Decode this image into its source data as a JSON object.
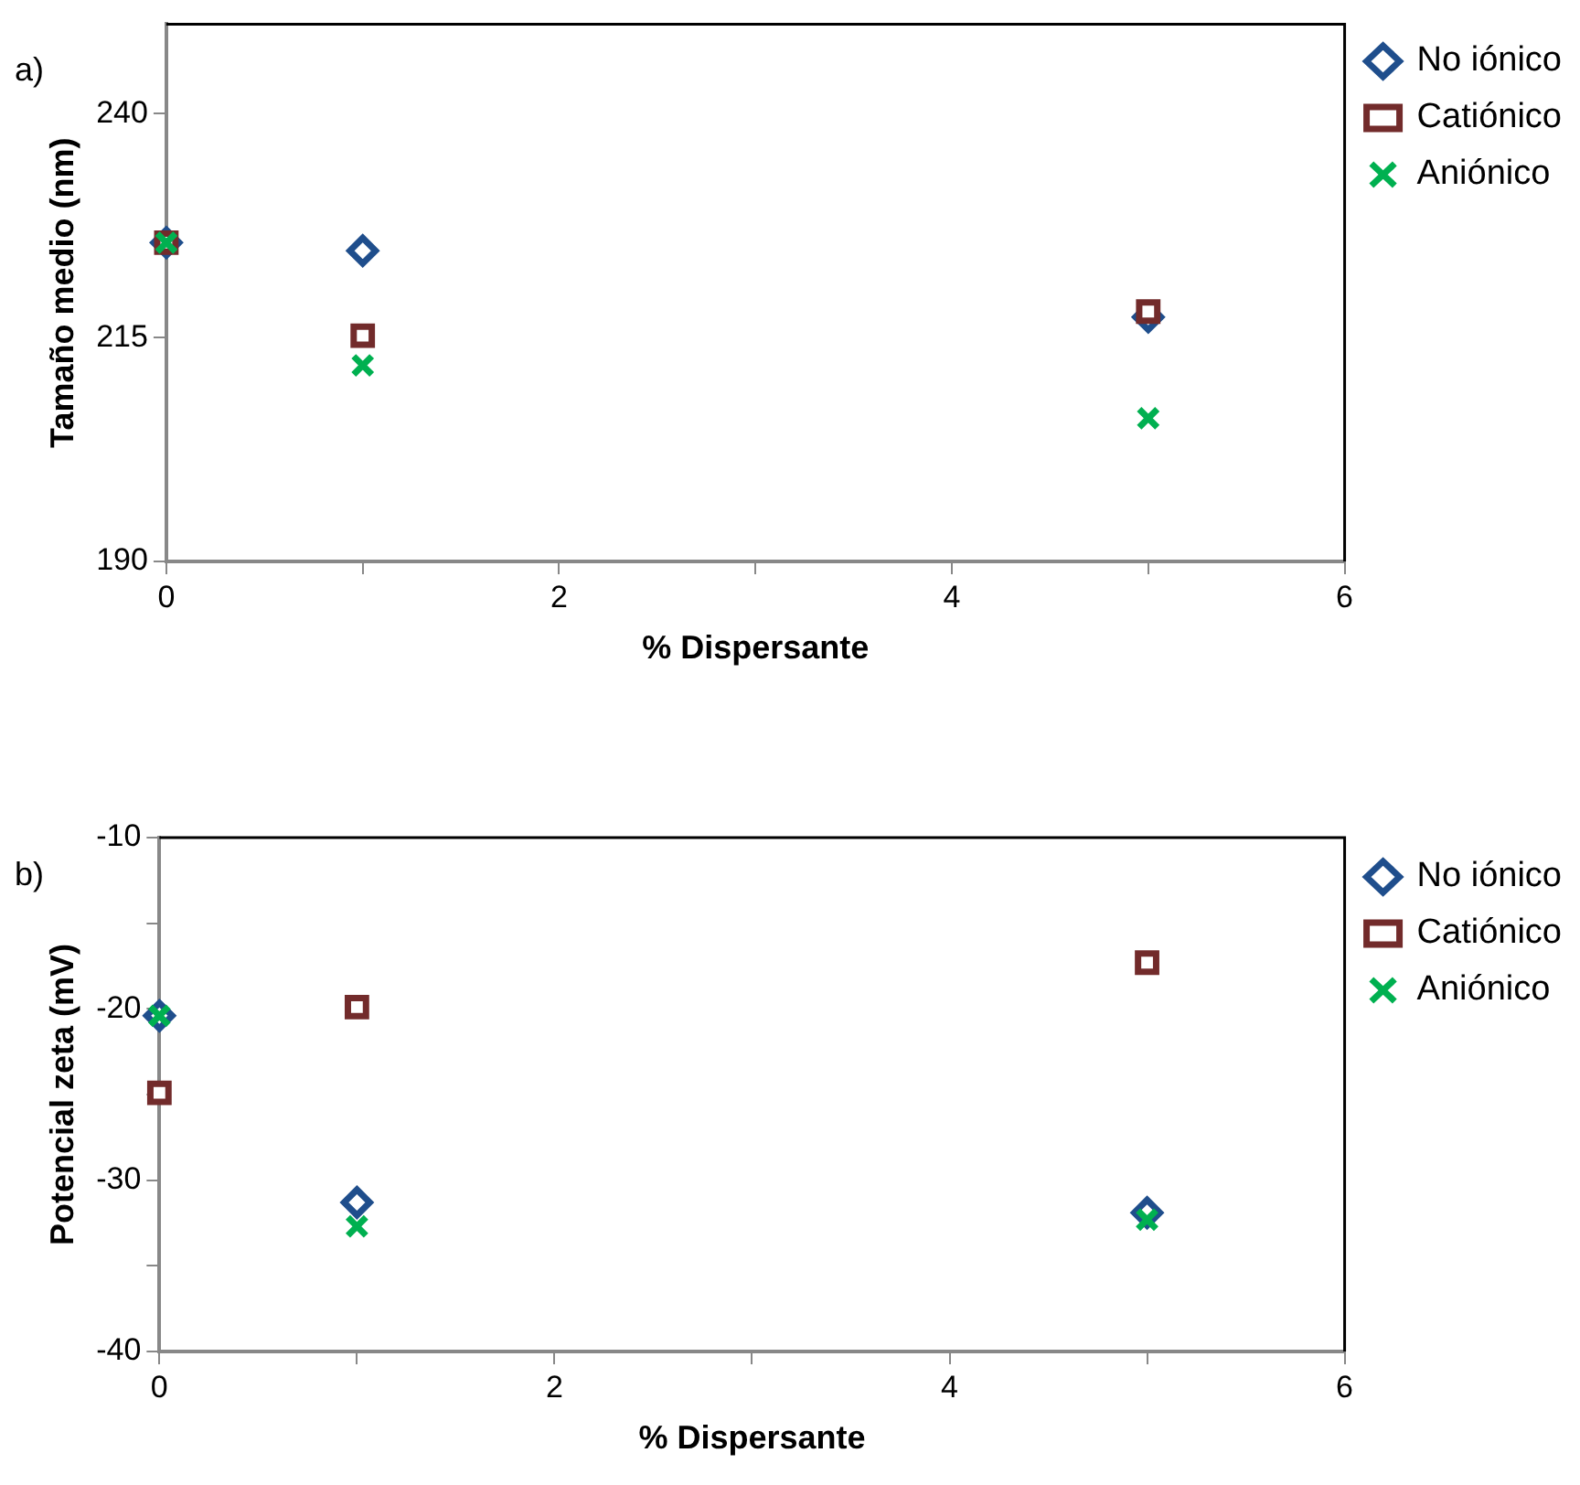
{
  "chart_data": [
    {
      "type": "scatter",
      "xlabel": "% Dispersante",
      "ylabel": "Tamaño medio (nm)",
      "annotations": [
        "a)"
      ],
      "xlim": [
        0,
        6
      ],
      "xticks": [
        0,
        {
          "value": 1,
          "label": null
        },
        2,
        {
          "value": 3,
          "label": null
        },
        4,
        {
          "value": 5,
          "label": null
        },
        6
      ],
      "ylim": [
        190,
        250
      ],
      "yticks": [
        190,
        215,
        240
      ],
      "legend": "right",
      "grid": false,
      "x": [
        0,
        1,
        5
      ],
      "series": [
        {
          "name": "No iónico",
          "color": "#1f4e8c",
          "marker": "diamond",
          "values": [
            225.6,
            224.7,
            217.3
          ]
        },
        {
          "name": "Catiónico",
          "color": "#722b2b",
          "marker": "square",
          "values": [
            225.6,
            215.2,
            217.9
          ]
        },
        {
          "name": "Aniónico",
          "color": "#00b050",
          "marker": "cross",
          "values": [
            225.6,
            211.9,
            206
          ]
        }
      ]
    },
    {
      "type": "scatter",
      "xlabel": "% Dispersante",
      "ylabel": "Potencial zeta (mV)",
      "annotations": [
        "b)"
      ],
      "xlim": [
        0,
        6
      ],
      "xticks": [
        0,
        {
          "value": 1,
          "label": null
        },
        2,
        {
          "value": 3,
          "label": null
        },
        4,
        {
          "value": 5,
          "label": null
        },
        6
      ],
      "ylim": [
        -40,
        -10
      ],
      "yticks": [
        -40,
        {
          "value": -35,
          "label": null
        },
        -30,
        {
          "value": -25,
          "label": null
        },
        -20,
        {
          "value": -15,
          "label": null
        },
        -10
      ],
      "legend": "right",
      "grid": false,
      "x": [
        0,
        1,
        5
      ],
      "series": [
        {
          "name": "No iónico",
          "color": "#1f4e8c",
          "marker": "diamond",
          "values": [
            -20.4,
            -31.3,
            -31.9
          ]
        },
        {
          "name": "Catiónico",
          "color": "#722b2b",
          "marker": "square",
          "values": [
            -24.9,
            -19.9,
            -17.3
          ]
        },
        {
          "name": "Aniónico",
          "color": "#00b050",
          "marker": "cross",
          "values": [
            -20.4,
            -32.7,
            -32.3
          ]
        }
      ]
    }
  ]
}
